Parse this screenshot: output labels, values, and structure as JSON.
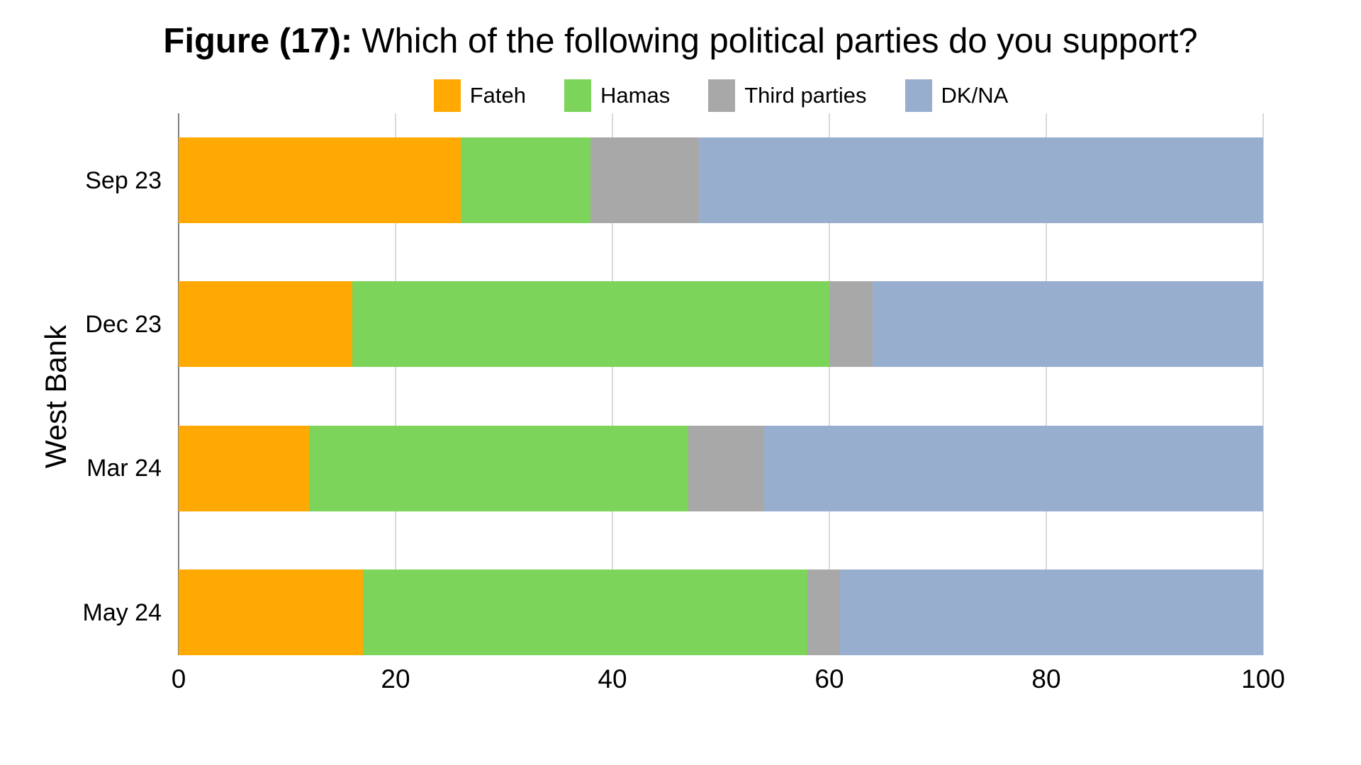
{
  "figure": {
    "title_prefix": "Figure (17):",
    "title_rest": "Which of the following political parties do you support?"
  },
  "chart_data": {
    "type": "bar",
    "orientation": "horizontal",
    "stacked": true,
    "title": "Figure (17): Which of the following political parties do you support?",
    "ylabel": "West Bank",
    "xlabel": "",
    "categories": [
      "Sep 23",
      "Dec 23",
      "Mar 24",
      "May 24"
    ],
    "series": [
      {
        "name": "Fateh",
        "color": "#FFA902",
        "values": [
          26,
          16,
          12,
          17
        ]
      },
      {
        "name": "Hamas",
        "color": "#7CD45A",
        "values": [
          12,
          44,
          35,
          41
        ]
      },
      {
        "name": "Third parties",
        "color": "#A8A8A8",
        "values": [
          10,
          4,
          7,
          3
        ]
      },
      {
        "name": "DK/NA",
        "color": "#98AECE",
        "values": [
          52,
          36,
          46,
          39
        ]
      }
    ],
    "xlim": [
      0,
      100
    ],
    "xticks": [
      0,
      20,
      40,
      60,
      80,
      100
    ],
    "legend_position": "top-center",
    "grid": "vertical",
    "colors": {
      "gridline": "#D9D9D9",
      "axis_line": "#7F7F7F",
      "background": "#FFFFFF",
      "text": "#000000"
    }
  }
}
